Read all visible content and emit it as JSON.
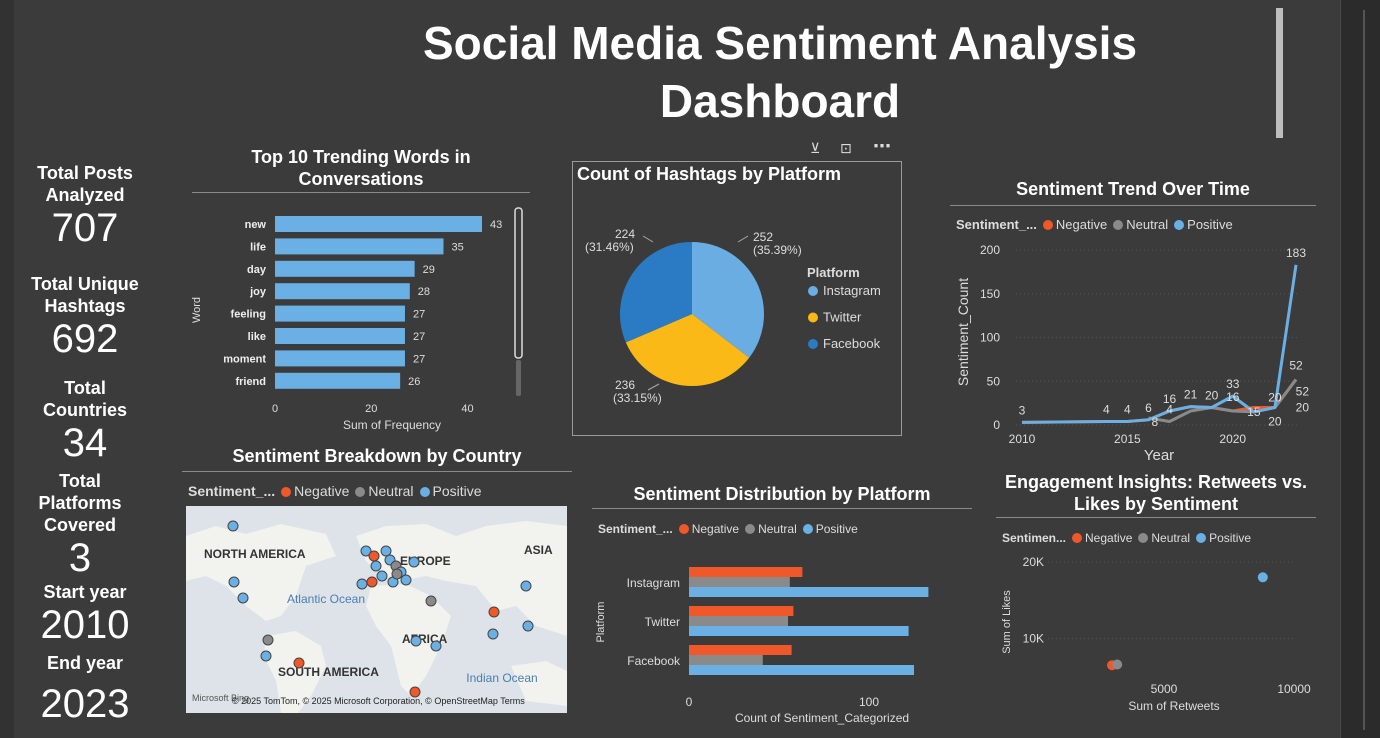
{
  "dashboard": {
    "title": "Social Media Sentiment Analysis Dashboard"
  },
  "kpis": [
    {
      "label": "Total Posts Analyzed",
      "value": "707"
    },
    {
      "label": "Total Unique Hashtags",
      "value": "692"
    },
    {
      "label": "Total Countries",
      "value": "34"
    },
    {
      "label": "Total Platforms Covered",
      "value": "3"
    },
    {
      "label": "Start year",
      "value": "2010"
    },
    {
      "label": "End year",
      "value": "2023"
    }
  ],
  "icons": {
    "filter": "filter-icon",
    "focus": "focus-mode-icon",
    "more": "more-options-icon"
  },
  "colors": {
    "negative": "#f0582a",
    "neutral": "#8a8a8a",
    "positive": "#6ab0e4",
    "instagram": "#6aade2",
    "twitter": "#fbb917",
    "facebook": "#2b7bc4"
  },
  "legend": {
    "field": "Sentiment_...",
    "field_short": "Sentimen...",
    "items": [
      "Negative",
      "Neutral",
      "Positive"
    ]
  },
  "trending": {
    "title": "Top 10 Trending Words in Conversations",
    "axis_label": "Sum of Frequency",
    "cat_label": "Word"
  },
  "hashtags": {
    "title": "Count of Hashtags by Platform",
    "legend_title": "Platform",
    "slice_labels": [
      {
        "count": "252",
        "pct": "(35.39%)"
      },
      {
        "count": "236",
        "pct": "(33.15%)"
      },
      {
        "count": "224",
        "pct": "(31.46%)"
      }
    ]
  },
  "trend": {
    "title": "Sentiment Trend Over Time",
    "ylabel": "Sentiment_Count",
    "xlabel": "Year",
    "point_labels": [
      "3",
      "4",
      "4",
      "6",
      "8",
      "16",
      "4",
      "21",
      "20",
      "16",
      "33",
      "15",
      "20",
      "20",
      "183",
      "52",
      "52",
      "20"
    ]
  },
  "country": {
    "title": "Sentiment Breakdown by Country",
    "map_labels": {
      "na": "NORTH AMERICA",
      "eu": "EUROPE",
      "as": "ASIA",
      "ao": "Atlantic Ocean",
      "af": "AFRICA",
      "sa": "SOUTH AMERICA",
      "io": "Indian Ocean"
    },
    "attribution": "© 2025 TomTom, © 2025 Microsoft Corporation, © OpenStreetMap  Terms",
    "brand": "Microsoft Bing"
  },
  "distribution": {
    "title": "Sentiment Distribution by Platform",
    "xlabel": "Count of Sentiment_Categorized",
    "ylabel": "Platform"
  },
  "engagement": {
    "title": "Engagement Insights: Retweets vs. Likes by Sentiment",
    "xlabel": "Sum of Retweets",
    "ylabel": "Sum of Likes"
  },
  "chart_data": [
    {
      "type": "bar",
      "orientation": "horizontal",
      "title": "Top 10 Trending Words in Conversations",
      "xlabel": "Sum of Frequency",
      "ylabel": "Word",
      "categories": [
        "new",
        "life",
        "day",
        "joy",
        "feeling",
        "like",
        "moment",
        "friend"
      ],
      "values": [
        43,
        35,
        29,
        28,
        27,
        27,
        27,
        26
      ],
      "xlim": [
        0,
        43
      ],
      "xticks": [
        "0",
        "20",
        "40"
      ]
    },
    {
      "type": "pie",
      "title": "Count of Hashtags by Platform",
      "categories": [
        "Instagram",
        "Twitter",
        "Facebook"
      ],
      "values": [
        252,
        236,
        224
      ]
    },
    {
      "type": "line",
      "title": "Sentiment Trend Over Time",
      "xlabel": "Year",
      "ylabel": "Sentiment_Count",
      "xticks": [
        "2010",
        "2015",
        "2020"
      ],
      "yticks": [
        "0",
        "50",
        "100",
        "150",
        "200"
      ],
      "ylim": [
        0,
        200
      ],
      "series": [
        {
          "name": "Negative",
          "x": [
            2010,
            2014,
            2015,
            2016,
            2017,
            2018,
            2019,
            2020,
            2021,
            2022,
            2023
          ],
          "y": [
            3,
            4,
            4,
            6,
            16,
            21,
            20,
            16,
            20,
            20,
            52
          ]
        },
        {
          "name": "Neutral",
          "x": [
            2016,
            2017,
            2018,
            2019,
            2020,
            2021,
            2022,
            2023
          ],
          "y": [
            8,
            4,
            16,
            20,
            16,
            15,
            20,
            52
          ]
        },
        {
          "name": "Positive",
          "x": [
            2010,
            2014,
            2015,
            2016,
            2017,
            2018,
            2019,
            2020,
            2021,
            2022,
            2023
          ],
          "y": [
            3,
            4,
            4,
            6,
            16,
            21,
            20,
            33,
            15,
            20,
            183
          ]
        }
      ]
    },
    {
      "type": "bar",
      "orientation": "horizontal",
      "title": "Sentiment Distribution by Platform",
      "xlabel": "Count of Sentiment_Categorized",
      "ylabel": "Platform",
      "categories": [
        "Instagram",
        "Twitter",
        "Facebook"
      ],
      "xticks": [
        "0",
        "100"
      ],
      "series": [
        {
          "name": "Negative",
          "values": [
            63,
            58,
            57
          ]
        },
        {
          "name": "Neutral",
          "values": [
            56,
            55,
            41
          ]
        },
        {
          "name": "Positive",
          "values": [
            133,
            122,
            125
          ]
        }
      ]
    },
    {
      "type": "scatter",
      "title": "Engagement Insights: Retweets vs. Likes by Sentiment",
      "xlabel": "Sum of Retweets",
      "ylabel": "Sum of Likes",
      "xticks": [
        "5000",
        "10000"
      ],
      "yticks": [
        "10K",
        "20K"
      ],
      "series": [
        {
          "name": "Negative",
          "x": [
            3000
          ],
          "y": [
            6500
          ]
        },
        {
          "name": "Neutral",
          "x": [
            3200
          ],
          "y": [
            6600
          ]
        },
        {
          "name": "Positive",
          "x": [
            8800
          ],
          "y": [
            18000
          ]
        }
      ]
    }
  ]
}
